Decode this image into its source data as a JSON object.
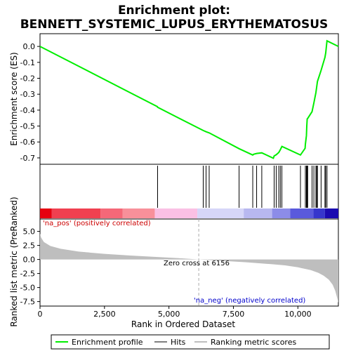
{
  "chart_data": {
    "type": "line",
    "title_line1": "Enrichment plot:",
    "title_line2": "BENNETT_SYSTEMIC_LUPUS_ERYTHEMATOSUS",
    "es_panel": {
      "ylabel": "Enrichment score (ES)",
      "ylim": [
        -0.74,
        0.08
      ],
      "yticks": [
        0.0,
        -0.1,
        -0.2,
        -0.3,
        -0.4,
        -0.5,
        -0.6,
        -0.7
      ],
      "ytick_labels": [
        "0.0",
        "-0.1",
        "-0.2",
        "-0.3",
        "-0.4",
        "-0.5",
        "-0.6",
        "-0.7"
      ],
      "series": [
        {
          "name": "Enrichment profile",
          "color": "#00ee00",
          "x": [
            0,
            4550,
            4560,
            6330,
            6440,
            6560,
            7720,
            8250,
            8290,
            8400,
            8600,
            9050,
            9080,
            9160,
            9260,
            9320,
            9380,
            10100,
            10280,
            10290,
            10330,
            10345,
            10360,
            10380,
            10550,
            10620,
            10700,
            10730,
            10760,
            10900,
            11050,
            11080,
            11130,
            11570
          ],
          "y": [
            0.0,
            -0.378,
            -0.382,
            -0.528,
            -0.536,
            -0.543,
            -0.642,
            -0.682,
            -0.677,
            -0.672,
            -0.668,
            -0.702,
            -0.688,
            -0.68,
            -0.666,
            -0.648,
            -0.628,
            -0.682,
            -0.64,
            -0.615,
            -0.56,
            -0.5,
            -0.455,
            -0.452,
            -0.41,
            -0.355,
            -0.29,
            -0.255,
            -0.22,
            -0.15,
            -0.068,
            -0.04,
            0.035,
            0.0
          ]
        }
      ]
    },
    "hits": [
      4560,
      6330,
      6440,
      6560,
      7720,
      8250,
      8400,
      8600,
      9080,
      9160,
      9260,
      9320,
      9380,
      10100,
      10290,
      10330,
      10345,
      10360,
      10380,
      10550,
      10620,
      10700,
      10730,
      10760,
      10900,
      11050,
      11080,
      11130
    ],
    "rank_panel": {
      "ylabel": "Ranked list metric (PreRanked)",
      "ylim": [
        -8.3,
        7.2
      ],
      "yticks": [
        5.0,
        2.5,
        0.0,
        -2.5,
        -5.0,
        -7.5
      ],
      "ytick_labels": [
        "5.0",
        "2.5",
        "0.0",
        "-2.5",
        "-5.0",
        "-7.5"
      ],
      "color": "#bebebe",
      "x": [
        0,
        40,
        150,
        400,
        800,
        1500,
        2500,
        3500,
        4500,
        5500,
        6156,
        7000,
        8000,
        9000,
        9500,
        10000,
        10500,
        10800,
        11000,
        11200,
        11350,
        11450,
        11520,
        11570
      ],
      "y": [
        4.6,
        3.9,
        3.1,
        2.4,
        1.9,
        1.4,
        1.0,
        0.7,
        0.45,
        0.2,
        0.0,
        -0.22,
        -0.5,
        -0.85,
        -1.05,
        -1.4,
        -1.9,
        -2.4,
        -2.9,
        -3.6,
        -4.5,
        -5.6,
        -6.8,
        -7.7
      ],
      "label_pos": "'na_pos' (positively correlated)",
      "label_neg": "'na_neg' (negatively correlated)",
      "zero_cross_label": "Zero cross at 6156",
      "zero_cross": 6156
    },
    "x_axis": {
      "xlabel": "Rank in Ordered Dataset",
      "xlim": [
        0,
        11570
      ],
      "xticks": [
        0,
        2500,
        5000,
        7500,
        10000
      ],
      "xtick_labels": [
        "0",
        "2,500",
        "5,000",
        "7,500",
        "10,000"
      ]
    },
    "heat_bar": {
      "segments": [
        {
          "end": 450,
          "color": "#e60010"
        },
        {
          "end": 2350,
          "color": "#f04050"
        },
        {
          "end": 3200,
          "color": "#f56878"
        },
        {
          "end": 4450,
          "color": "#f8909a"
        },
        {
          "end": 6100,
          "color": "#fac0e4"
        },
        {
          "end": 7900,
          "color": "#d6d6f8"
        },
        {
          "end": 9000,
          "color": "#b8b8f0"
        },
        {
          "end": 9700,
          "color": "#8c8ce8"
        },
        {
          "end": 10600,
          "color": "#5a5adc"
        },
        {
          "end": 11050,
          "color": "#3636cc"
        },
        {
          "end": 11570,
          "color": "#1a0ab0"
        }
      ]
    },
    "legend": {
      "placement": "bottom",
      "items": [
        {
          "label": "Enrichment profile",
          "color": "#00ee00"
        },
        {
          "label": "Hits",
          "color": "#000000"
        },
        {
          "label": "Ranking metric scores",
          "color": "#bebebe"
        }
      ]
    }
  }
}
